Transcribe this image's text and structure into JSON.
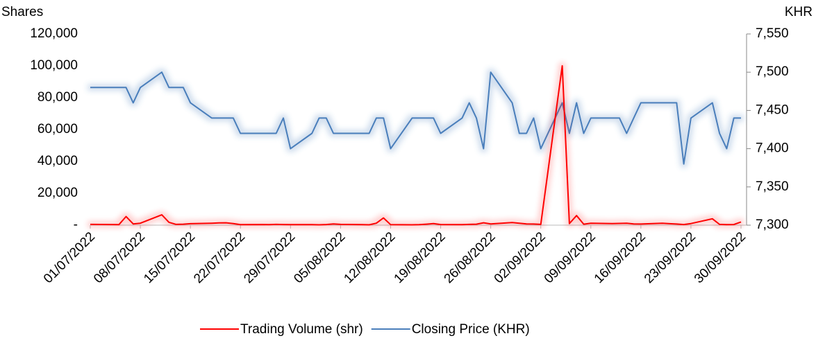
{
  "chart_data": {
    "type": "line",
    "y_label": "Shares",
    "y2_label": "KHR",
    "xlim": [
      "01/07/2022",
      "30/09/2022"
    ],
    "xticks": [
      "01/07/2022",
      "08/07/2022",
      "15/07/2022",
      "22/07/2022",
      "29/07/2022",
      "05/08/2022",
      "12/08/2022",
      "19/08/2022",
      "26/08/2022",
      "02/09/2022",
      "09/09/2022",
      "16/09/2022",
      "23/09/2022",
      "30/09/2022"
    ],
    "x": [
      "01/07/2022",
      "04/07/2022",
      "05/07/2022",
      "06/07/2022",
      "07/07/2022",
      "08/07/2022",
      "11/07/2022",
      "12/07/2022",
      "13/07/2022",
      "14/07/2022",
      "15/07/2022",
      "18/07/2022",
      "19/07/2022",
      "20/07/2022",
      "21/07/2022",
      "22/07/2022",
      "25/07/2022",
      "26/07/2022",
      "27/07/2022",
      "28/07/2022",
      "29/07/2022",
      "01/08/2022",
      "02/08/2022",
      "03/08/2022",
      "04/08/2022",
      "05/08/2022",
      "08/08/2022",
      "09/08/2022",
      "10/08/2022",
      "11/08/2022",
      "12/08/2022",
      "15/08/2022",
      "16/08/2022",
      "17/08/2022",
      "18/08/2022",
      "19/08/2022",
      "22/08/2022",
      "23/08/2022",
      "24/08/2022",
      "25/08/2022",
      "26/08/2022",
      "29/08/2022",
      "30/08/2022",
      "31/08/2022",
      "01/09/2022",
      "02/09/2022",
      "05/09/2022",
      "06/09/2022",
      "07/09/2022",
      "08/09/2022",
      "09/09/2022",
      "12/09/2022",
      "13/09/2022",
      "14/09/2022",
      "15/09/2022",
      "16/09/2022",
      "19/09/2022",
      "20/09/2022",
      "21/09/2022",
      "22/09/2022",
      "23/09/2022",
      "26/09/2022",
      "27/09/2022",
      "28/09/2022",
      "29/09/2022",
      "30/09/2022"
    ],
    "ylim": [
      0,
      120000
    ],
    "yticks": [
      {
        "value": 0,
        "label": "-"
      },
      {
        "value": 20000,
        "label": "20,000"
      },
      {
        "value": 40000,
        "label": "40,000"
      },
      {
        "value": 60000,
        "label": "60,000"
      },
      {
        "value": 80000,
        "label": "80,000"
      },
      {
        "value": 100000,
        "label": "100,000"
      },
      {
        "value": 120000,
        "label": "120,000"
      }
    ],
    "y2lim": [
      7300,
      7550
    ],
    "y2ticks": [
      {
        "value": 7300,
        "label": "7,300"
      },
      {
        "value": 7350,
        "label": "7,350"
      },
      {
        "value": 7400,
        "label": "7,400"
      },
      {
        "value": 7450,
        "label": "7,450"
      },
      {
        "value": 7500,
        "label": "7,500"
      },
      {
        "value": 7550,
        "label": "7,550"
      }
    ],
    "series": [
      {
        "name": "Trading Volume (shr)",
        "color": "#ff0000",
        "axis": "y",
        "values": [
          500,
          400,
          300,
          5400,
          800,
          1200,
          6500,
          1800,
          500,
          600,
          900,
          1200,
          1400,
          1500,
          1000,
          300,
          400,
          300,
          500,
          400,
          300,
          300,
          200,
          400,
          800,
          500,
          300,
          200,
          1200,
          4500,
          300,
          200,
          300,
          600,
          1000,
          400,
          300,
          500,
          600,
          1500,
          800,
          1600,
          1200,
          800,
          700,
          500,
          100000,
          1000,
          6000,
          600,
          1200,
          1000,
          1100,
          1200,
          800,
          700,
          1200,
          900,
          700,
          400,
          1000,
          4000,
          500,
          300,
          400,
          2000
        ]
      },
      {
        "name": "Closing Price (KHR)",
        "color": "#4a7ebb",
        "axis": "y2",
        "values": [
          7480,
          7480,
          7480,
          7480,
          7460,
          7480,
          7500,
          7480,
          7480,
          7480,
          7460,
          7440,
          7440,
          7440,
          7440,
          7420,
          7420,
          7420,
          7420,
          7440,
          7400,
          7420,
          7440,
          7440,
          7420,
          7420,
          7420,
          7420,
          7440,
          7440,
          7400,
          7440,
          7440,
          7440,
          7440,
          7420,
          7440,
          7460,
          7440,
          7400,
          7500,
          7460,
          7420,
          7420,
          7440,
          7400,
          7460,
          7420,
          7460,
          7420,
          7440,
          7440,
          7440,
          7420,
          7440,
          7460,
          7460,
          7460,
          7460,
          7380,
          7440,
          7460,
          7420,
          7400,
          7440,
          7440
        ]
      }
    ]
  }
}
